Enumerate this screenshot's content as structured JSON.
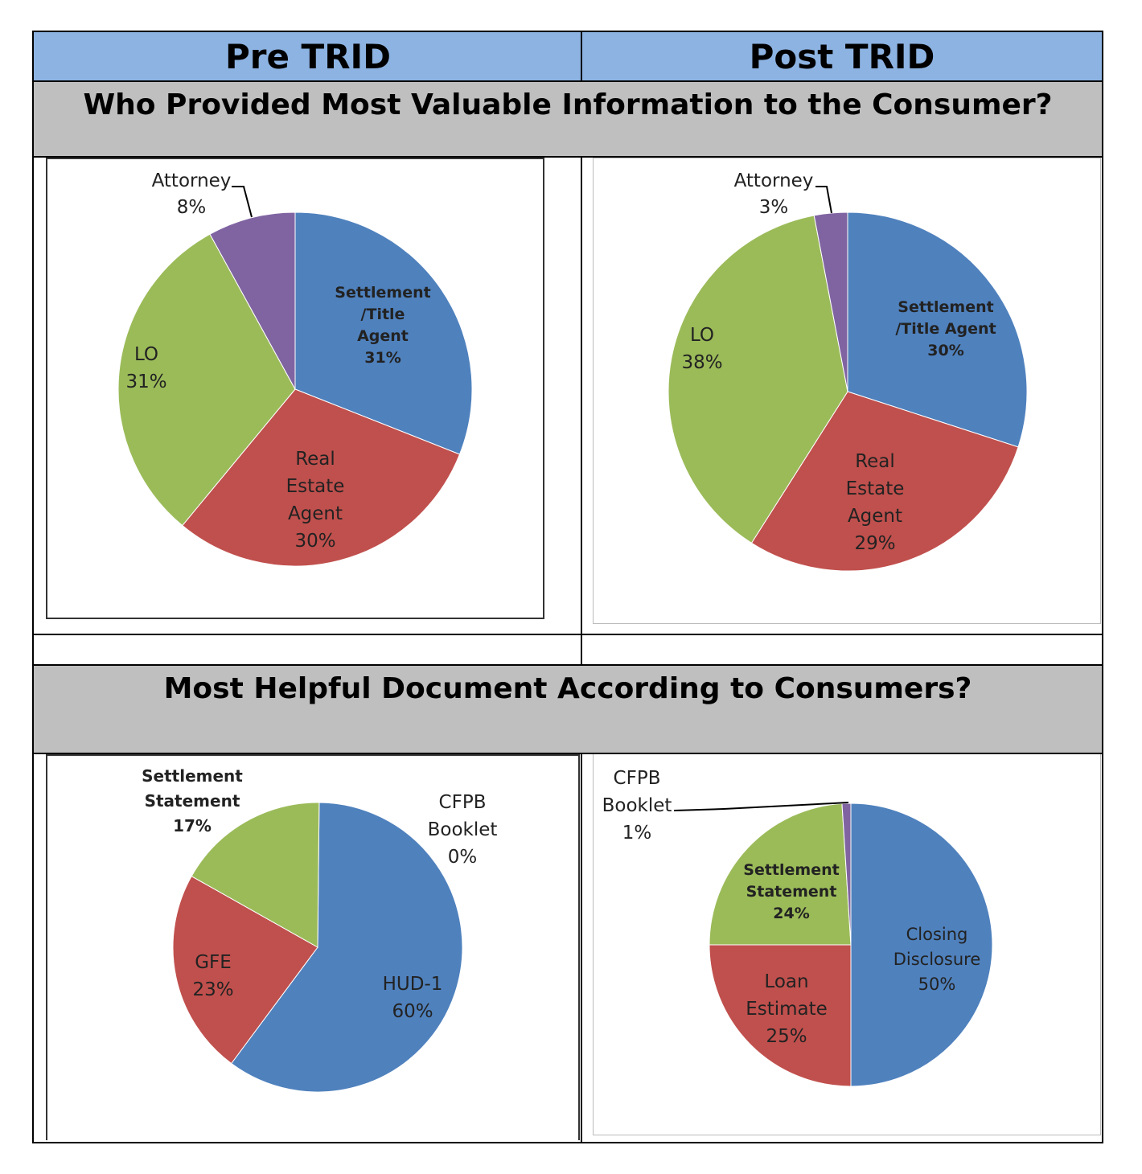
{
  "headers": {
    "left": "Pre TRID",
    "right": "Post TRID"
  },
  "sections": {
    "top": "Who Provided Most Valuable Information to the Consumer?",
    "bottom": "Most Helpful Document According to Consumers?"
  },
  "colors": {
    "blue": "#4f81bd",
    "red": "#c0504d",
    "green": "#9bbb59",
    "purple": "#8064a2",
    "header": "#8db3e2",
    "section": "#bfbfbf"
  },
  "chart_data": [
    {
      "type": "pie",
      "slices": [
        {
          "lines": [
            "Settlement",
            "/Title",
            "Agent",
            "31%"
          ],
          "value": 31,
          "color": "#4f81bd"
        },
        {
          "lines": [
            "Real",
            "Estate",
            "Agent",
            "30%"
          ],
          "value": 30,
          "color": "#c0504d"
        },
        {
          "lines": [
            "LO",
            "31%"
          ],
          "value": 31,
          "color": "#9bbb59"
        },
        {
          "lines": [
            "Attorney",
            "8%"
          ],
          "value": 8,
          "color": "#8064a2"
        }
      ]
    },
    {
      "type": "pie",
      "slices": [
        {
          "lines": [
            "Settlement",
            "/Title Agent",
            "30%"
          ],
          "value": 30,
          "color": "#4f81bd"
        },
        {
          "lines": [
            "Real",
            "Estate",
            "Agent",
            "29%"
          ],
          "value": 29,
          "color": "#c0504d"
        },
        {
          "lines": [
            "LO",
            "38%"
          ],
          "value": 38,
          "color": "#9bbb59"
        },
        {
          "lines": [
            "Attorney",
            "3%"
          ],
          "value": 3,
          "color": "#8064a2"
        }
      ]
    },
    {
      "type": "pie",
      "slices": [
        {
          "lines": [
            "CFPB",
            "Booklet",
            "0%"
          ],
          "value": 0,
          "color": "#8064a2"
        },
        {
          "lines": [
            "HUD-1",
            "60%"
          ],
          "value": 60,
          "color": "#4f81bd"
        },
        {
          "lines": [
            "GFE",
            "23%"
          ],
          "value": 23,
          "color": "#c0504d"
        },
        {
          "lines": [
            "Settlement",
            "Statement",
            "17%"
          ],
          "value": 17,
          "color": "#9bbb59"
        }
      ]
    },
    {
      "type": "pie",
      "slices": [
        {
          "lines": [
            "Closing",
            "Disclosure",
            "50%"
          ],
          "value": 50,
          "color": "#4f81bd"
        },
        {
          "lines": [
            "Loan",
            "Estimate",
            "25%"
          ],
          "value": 25,
          "color": "#c0504d"
        },
        {
          "lines": [
            "Settlement",
            "Statement",
            "24%"
          ],
          "value": 24,
          "color": "#9bbb59"
        },
        {
          "lines": [
            "CFPB",
            "Booklet",
            "1%"
          ],
          "value": 1,
          "color": "#8064a2"
        }
      ]
    }
  ]
}
